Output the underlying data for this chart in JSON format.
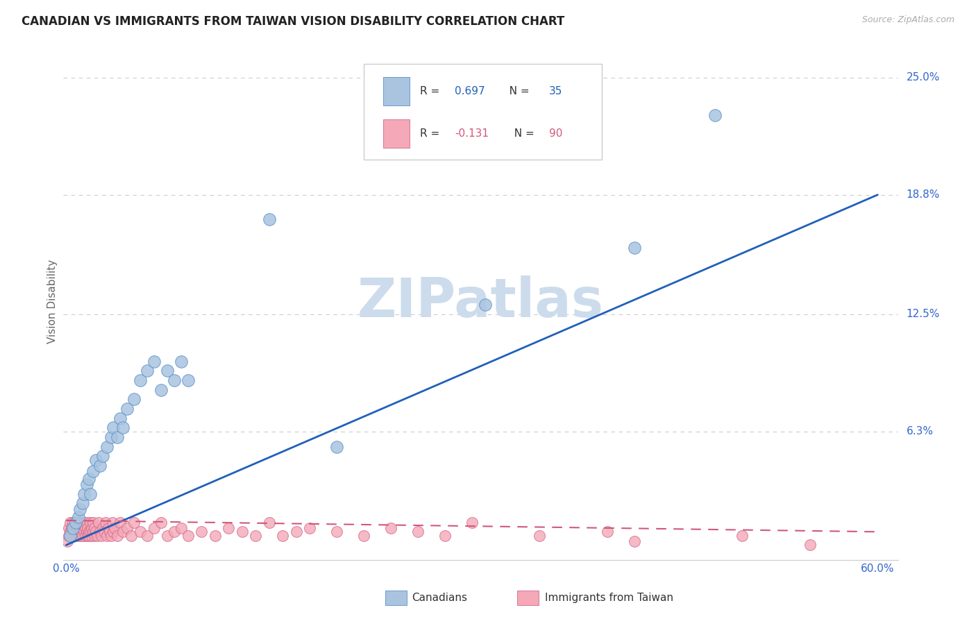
{
  "title": "CANADIAN VS IMMIGRANTS FROM TAIWAN VISION DISABILITY CORRELATION CHART",
  "source": "Source: ZipAtlas.com",
  "ylabel": "Vision Disability",
  "xlim": [
    -0.002,
    0.615
  ],
  "ylim": [
    -0.005,
    0.268
  ],
  "xtick_positions": [
    0.0,
    0.1,
    0.2,
    0.3,
    0.4,
    0.5,
    0.6
  ],
  "xticklabels": [
    "0.0%",
    "",
    "",
    "",
    "",
    "",
    "60.0%"
  ],
  "ytick_right_vals": [
    0.063,
    0.125,
    0.188,
    0.25
  ],
  "ytick_right_labels": [
    "6.3%",
    "12.5%",
    "18.8%",
    "25.0%"
  ],
  "canadians_x": [
    0.003,
    0.005,
    0.007,
    0.009,
    0.01,
    0.012,
    0.013,
    0.015,
    0.017,
    0.018,
    0.02,
    0.022,
    0.025,
    0.027,
    0.03,
    0.033,
    0.035,
    0.038,
    0.04,
    0.042,
    0.045,
    0.05,
    0.055,
    0.06,
    0.065,
    0.07,
    0.075,
    0.08,
    0.085,
    0.09,
    0.15,
    0.2,
    0.31,
    0.42,
    0.48
  ],
  "canadians_y": [
    0.008,
    0.012,
    0.015,
    0.018,
    0.022,
    0.025,
    0.03,
    0.035,
    0.038,
    0.03,
    0.042,
    0.048,
    0.045,
    0.05,
    0.055,
    0.06,
    0.065,
    0.06,
    0.07,
    0.065,
    0.075,
    0.08,
    0.09,
    0.095,
    0.1,
    0.085,
    0.095,
    0.09,
    0.1,
    0.09,
    0.175,
    0.055,
    0.13,
    0.16,
    0.23
  ],
  "taiwan_x": [
    0.001,
    0.002,
    0.002,
    0.003,
    0.003,
    0.004,
    0.004,
    0.005,
    0.005,
    0.006,
    0.006,
    0.007,
    0.007,
    0.008,
    0.008,
    0.009,
    0.009,
    0.01,
    0.01,
    0.011,
    0.011,
    0.012,
    0.012,
    0.013,
    0.013,
    0.014,
    0.014,
    0.015,
    0.015,
    0.016,
    0.016,
    0.017,
    0.017,
    0.018,
    0.018,
    0.019,
    0.019,
    0.02,
    0.02,
    0.021,
    0.021,
    0.022,
    0.023,
    0.024,
    0.025,
    0.026,
    0.027,
    0.028,
    0.029,
    0.03,
    0.031,
    0.032,
    0.033,
    0.034,
    0.035,
    0.036,
    0.038,
    0.04,
    0.042,
    0.045,
    0.048,
    0.05,
    0.055,
    0.06,
    0.065,
    0.07,
    0.075,
    0.08,
    0.085,
    0.09,
    0.1,
    0.11,
    0.12,
    0.13,
    0.14,
    0.15,
    0.16,
    0.17,
    0.18,
    0.2,
    0.22,
    0.24,
    0.26,
    0.28,
    0.3,
    0.35,
    0.4,
    0.42,
    0.5,
    0.55
  ],
  "taiwan_y": [
    0.005,
    0.008,
    0.012,
    0.01,
    0.015,
    0.008,
    0.012,
    0.015,
    0.01,
    0.008,
    0.012,
    0.015,
    0.01,
    0.008,
    0.012,
    0.015,
    0.01,
    0.008,
    0.012,
    0.01,
    0.015,
    0.008,
    0.012,
    0.01,
    0.015,
    0.008,
    0.012,
    0.01,
    0.015,
    0.008,
    0.012,
    0.01,
    0.008,
    0.015,
    0.01,
    0.012,
    0.008,
    0.01,
    0.015,
    0.008,
    0.012,
    0.01,
    0.008,
    0.015,
    0.01,
    0.008,
    0.012,
    0.01,
    0.015,
    0.008,
    0.012,
    0.01,
    0.008,
    0.015,
    0.01,
    0.012,
    0.008,
    0.015,
    0.01,
    0.012,
    0.008,
    0.015,
    0.01,
    0.008,
    0.012,
    0.015,
    0.008,
    0.01,
    0.012,
    0.008,
    0.01,
    0.008,
    0.012,
    0.01,
    0.008,
    0.015,
    0.008,
    0.01,
    0.012,
    0.01,
    0.008,
    0.012,
    0.01,
    0.008,
    0.015,
    0.008,
    0.01,
    0.005,
    0.008,
    0.003
  ],
  "blue_line_x": [
    0.0,
    0.6
  ],
  "blue_line_y": [
    0.003,
    0.188
  ],
  "pink_line_x": [
    0.0,
    0.6
  ],
  "pink_line_y": [
    0.016,
    0.01
  ],
  "blue_fill": "#aac4e0",
  "blue_edge": "#5590c8",
  "pink_fill": "#f4a8b8",
  "pink_edge": "#d06888",
  "blue_line_color": "#2060b8",
  "pink_line_color": "#d05878",
  "legend_R1": "0.697",
  "legend_N1": "35",
  "legend_R2": "-0.131",
  "legend_N2": "90",
  "watermark_color": "#ccdcec",
  "background_color": "#ffffff",
  "grid_color": "#cccccc",
  "title_color": "#222222",
  "tick_color": "#3366cc",
  "axis_label_color": "#666666"
}
